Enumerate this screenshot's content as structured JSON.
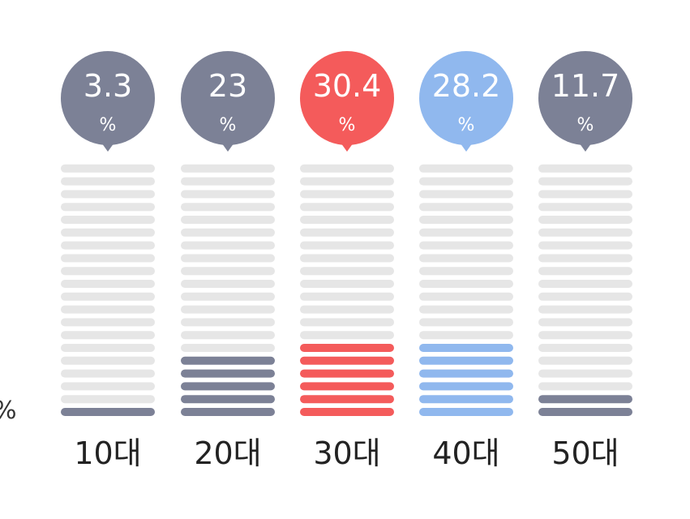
{
  "chart_data": {
    "type": "bar",
    "categories": [
      "10대",
      "20대",
      "30대",
      "40대",
      "50대"
    ],
    "values": [
      3.3,
      23,
      30.4,
      28.2,
      11.7
    ],
    "unit": "%",
    "segments_total": 20,
    "filled_segments": [
      1,
      5,
      6,
      6,
      2
    ],
    "colors": {
      "default": "#7c8196",
      "highlight_primary": "#f45b5b",
      "highlight_secondary": "#90b8ee",
      "empty": "#e6e6e6",
      "category_label": "#222222"
    },
    "bar_colors": [
      "#7c8196",
      "#7c8196",
      "#f45b5b",
      "#90b8ee",
      "#7c8196"
    ],
    "grid": false,
    "legend": "none"
  },
  "edge_text": "%"
}
